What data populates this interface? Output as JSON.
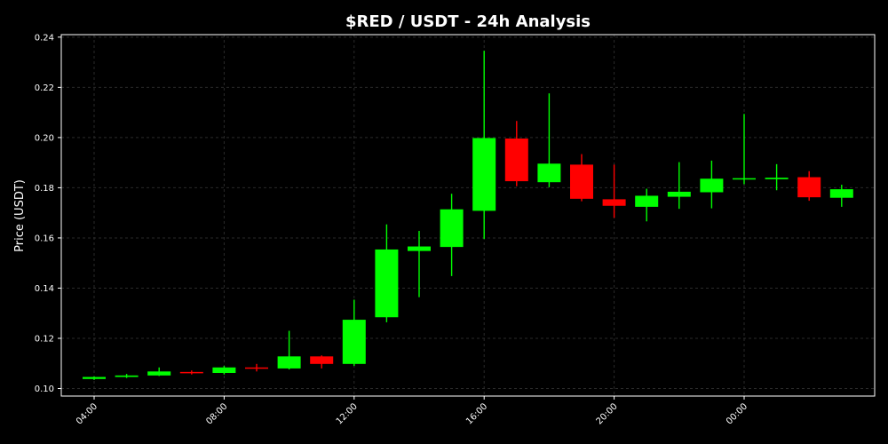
{
  "chart_data": {
    "type": "candlestick",
    "title": "$RED / USDT - 24h Analysis",
    "xlabel": "",
    "ylabel": "Price (USDT)",
    "ylim": [
      0.097,
      0.241
    ],
    "y_ticks": [
      "0.10",
      "0.12",
      "0.14",
      "0.16",
      "0.18",
      "0.20",
      "0.22",
      "0.24"
    ],
    "x_ticks": [
      "04:00",
      "08:00",
      "12:00",
      "16:00",
      "20:00",
      "00:00"
    ],
    "grid": true,
    "colors": {
      "background": "#000000",
      "up": "#00ff00",
      "down": "#ff0000",
      "grid": "#2a2a2a",
      "axes": "#ffffff",
      "text": "#ffffff"
    },
    "candles": [
      {
        "time": "04:00",
        "open": 0.1038,
        "high": 0.1048,
        "low": 0.1034,
        "close": 0.1046
      },
      {
        "time": "05:00",
        "open": 0.1046,
        "high": 0.1058,
        "low": 0.1042,
        "close": 0.1052
      },
      {
        "time": "06:00",
        "open": 0.1052,
        "high": 0.1084,
        "low": 0.105,
        "close": 0.1068
      },
      {
        "time": "07:00",
        "open": 0.1066,
        "high": 0.1072,
        "low": 0.1056,
        "close": 0.1062
      },
      {
        "time": "08:00",
        "open": 0.1062,
        "high": 0.109,
        "low": 0.1056,
        "close": 0.1084
      },
      {
        "time": "09:00",
        "open": 0.1084,
        "high": 0.1098,
        "low": 0.1068,
        "close": 0.108
      },
      {
        "time": "10:00",
        "open": 0.108,
        "high": 0.123,
        "low": 0.1076,
        "close": 0.1128
      },
      {
        "time": "11:00",
        "open": 0.1128,
        "high": 0.1132,
        "low": 0.108,
        "close": 0.1098
      },
      {
        "time": "12:00",
        "open": 0.1098,
        "high": 0.1354,
        "low": 0.109,
        "close": 0.1274
      },
      {
        "time": "13:00",
        "open": 0.1284,
        "high": 0.1654,
        "low": 0.1264,
        "close": 0.1554
      },
      {
        "time": "14:00",
        "open": 0.1548,
        "high": 0.1628,
        "low": 0.1364,
        "close": 0.1566
      },
      {
        "time": "15:00",
        "open": 0.1564,
        "high": 0.1776,
        "low": 0.1448,
        "close": 0.1714
      },
      {
        "time": "16:00",
        "open": 0.1708,
        "high": 0.2346,
        "low": 0.1596,
        "close": 0.1998
      },
      {
        "time": "17:00",
        "open": 0.1996,
        "high": 0.2066,
        "low": 0.1806,
        "close": 0.1826
      },
      {
        "time": "18:00",
        "open": 0.1822,
        "high": 0.2176,
        "low": 0.1802,
        "close": 0.1896
      },
      {
        "time": "19:00",
        "open": 0.1892,
        "high": 0.1934,
        "low": 0.1746,
        "close": 0.1756
      },
      {
        "time": "20:00",
        "open": 0.1754,
        "high": 0.1892,
        "low": 0.168,
        "close": 0.1728
      },
      {
        "time": "21:00",
        "open": 0.1724,
        "high": 0.1796,
        "low": 0.1666,
        "close": 0.1768
      },
      {
        "time": "22:00",
        "open": 0.1764,
        "high": 0.1902,
        "low": 0.1716,
        "close": 0.1784
      },
      {
        "time": "23:00",
        "open": 0.1782,
        "high": 0.1908,
        "low": 0.1718,
        "close": 0.1836
      },
      {
        "time": "00:00",
        "open": 0.1834,
        "high": 0.2094,
        "low": 0.1814,
        "close": 0.1838
      },
      {
        "time": "01:00",
        "open": 0.1834,
        "high": 0.1894,
        "low": 0.179,
        "close": 0.184
      },
      {
        "time": "02:00",
        "open": 0.1842,
        "high": 0.1866,
        "low": 0.1748,
        "close": 0.1762
      },
      {
        "time": "03:00",
        "open": 0.176,
        "high": 0.1812,
        "low": 0.1724,
        "close": 0.1794
      }
    ]
  }
}
